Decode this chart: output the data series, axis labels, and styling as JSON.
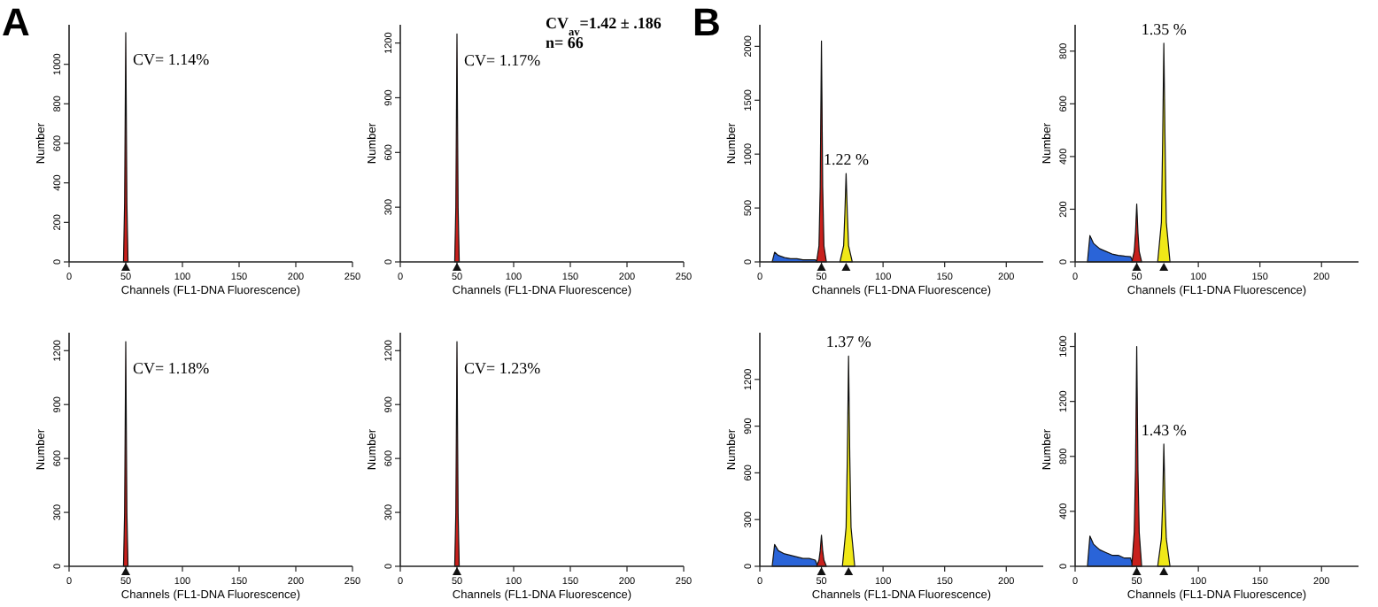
{
  "chart_data": [
    {
      "type": "area",
      "title": "A",
      "xlabel": "Channels (FL1-DNA Fluorescence)",
      "ylabel": "Number",
      "xlim": [
        0,
        250
      ],
      "xticks": [
        0,
        50,
        100,
        150,
        200,
        250
      ],
      "ylim": [
        0,
        1200
      ],
      "yticks": [
        0,
        200,
        400,
        600,
        800,
        1000
      ],
      "series": [
        {
          "color": "#c8201c",
          "x": [
            48,
            49,
            50,
            51,
            52
          ],
          "values": [
            0,
            300,
            1160,
            300,
            0
          ]
        }
      ],
      "annotations": [
        "CV= 1.14%"
      ]
    },
    {
      "type": "area",
      "xlabel": "Channels (FL1-DNA Fluorescence)",
      "ylabel": "Number",
      "xlim": [
        0,
        250
      ],
      "xticks": [
        0,
        50,
        100,
        150,
        200,
        250
      ],
      "ylim": [
        0,
        1300
      ],
      "yticks": [
        0,
        300,
        600,
        900,
        1200
      ],
      "series": [
        {
          "color": "#c8201c",
          "x": [
            48,
            49,
            50,
            51,
            52
          ],
          "values": [
            0,
            300,
            1250,
            300,
            0
          ]
        }
      ],
      "annotations": [
        "CV= 1.17%",
        "CV$_{av}$=1.42 ± .186",
        "n= 66"
      ]
    },
    {
      "type": "area",
      "title": "B",
      "xlabel": "Channels (FL1-DNA Fluorescence)",
      "ylabel": "Number",
      "xlim": [
        0,
        230
      ],
      "xticks": [
        0,
        50,
        100,
        150,
        200
      ],
      "ylim": [
        0,
        2200
      ],
      "yticks": [
        0,
        500,
        1000,
        1500,
        2000
      ],
      "series": [
        {
          "color": "#2a64d8",
          "x": [
            10,
            12,
            15,
            20,
            25,
            30,
            35,
            40,
            45,
            47
          ],
          "values": [
            0,
            90,
            60,
            40,
            30,
            30,
            20,
            20,
            20,
            0
          ]
        },
        {
          "color": "#c8201c",
          "x": [
            46,
            48,
            49,
            50,
            51,
            52,
            54
          ],
          "values": [
            0,
            150,
            700,
            2050,
            700,
            150,
            0
          ]
        },
        {
          "color": "#f0e818",
          "x": [
            65,
            68,
            69,
            70,
            71,
            72,
            75
          ],
          "values": [
            0,
            150,
            450,
            820,
            450,
            150,
            0
          ]
        }
      ],
      "annotations": [
        "1.22 %"
      ]
    },
    {
      "type": "area",
      "xlabel": "Channels (FL1-DNA Fluorescence)",
      "ylabel": "Number",
      "xlim": [
        0,
        230
      ],
      "xticks": [
        0,
        50,
        100,
        150,
        200
      ],
      "ylim": [
        0,
        900
      ],
      "yticks": [
        0,
        200,
        400,
        600,
        800
      ],
      "series": [
        {
          "color": "#2a64d8",
          "x": [
            10,
            12,
            15,
            20,
            25,
            30,
            35,
            40,
            45,
            47
          ],
          "values": [
            0,
            100,
            70,
            50,
            40,
            30,
            25,
            22,
            20,
            0
          ]
        },
        {
          "color": "#c8201c",
          "x": [
            46,
            48,
            49,
            50,
            51,
            52,
            54
          ],
          "values": [
            0,
            40,
            110,
            220,
            110,
            40,
            0
          ]
        },
        {
          "color": "#f0e818",
          "x": [
            67,
            70,
            71,
            72,
            73,
            74,
            77
          ],
          "values": [
            0,
            150,
            450,
            830,
            450,
            150,
            0
          ]
        }
      ],
      "annotations": [
        "1.35 %"
      ]
    },
    {
      "type": "area",
      "xlabel": "Channels (FL1-DNA Fluorescence)",
      "ylabel": "Number",
      "xlim": [
        0,
        250
      ],
      "xticks": [
        0,
        50,
        100,
        150,
        200,
        250
      ],
      "ylim": [
        0,
        1300
      ],
      "yticks": [
        0,
        300,
        600,
        900,
        1200
      ],
      "series": [
        {
          "color": "#c8201c",
          "x": [
            48,
            49,
            50,
            51,
            52
          ],
          "values": [
            0,
            300,
            1250,
            300,
            0
          ]
        }
      ],
      "annotations": [
        "CV= 1.18%"
      ]
    },
    {
      "type": "area",
      "xlabel": "Channels (FL1-DNA Fluorescence)",
      "ylabel": "Number",
      "xlim": [
        0,
        250
      ],
      "xticks": [
        0,
        50,
        100,
        150,
        200,
        250
      ],
      "ylim": [
        0,
        1300
      ],
      "yticks": [
        0,
        300,
        600,
        900,
        1200
      ],
      "series": [
        {
          "color": "#c8201c",
          "x": [
            48,
            49,
            50,
            51,
            52
          ],
          "values": [
            0,
            300,
            1250,
            300,
            0
          ]
        }
      ],
      "annotations": [
        "CV= 1.23%"
      ]
    },
    {
      "type": "area",
      "xlabel": "Channels (FL1-DNA Fluorescence)",
      "ylabel": "Number",
      "xlim": [
        0,
        230
      ],
      "xticks": [
        0,
        50,
        100,
        150,
        200
      ],
      "ylim": [
        0,
        1500
      ],
      "yticks": [
        0,
        300,
        600,
        900,
        1200
      ],
      "series": [
        {
          "color": "#2a64d8",
          "x": [
            10,
            12,
            15,
            20,
            25,
            30,
            35,
            40,
            45,
            47
          ],
          "values": [
            0,
            140,
            100,
            80,
            70,
            60,
            50,
            50,
            40,
            0
          ]
        },
        {
          "color": "#c8201c",
          "x": [
            46,
            48,
            49,
            50,
            51,
            52,
            54
          ],
          "values": [
            0,
            40,
            100,
            200,
            100,
            40,
            0
          ]
        },
        {
          "color": "#f0e818",
          "x": [
            67,
            70,
            71,
            72,
            73,
            74,
            77
          ],
          "values": [
            0,
            250,
            700,
            1350,
            700,
            250,
            0
          ]
        }
      ],
      "annotations": [
        "1.37 %"
      ]
    },
    {
      "type": "area",
      "xlabel": "Channels (FL1-DNA Fluorescence)",
      "ylabel": "Number",
      "xlim": [
        0,
        230
      ],
      "xticks": [
        0,
        50,
        100,
        150,
        200
      ],
      "ylim": [
        0,
        1700
      ],
      "yticks": [
        0,
        400,
        800,
        1200,
        1600
      ],
      "series": [
        {
          "color": "#2a64d8",
          "x": [
            10,
            12,
            15,
            20,
            25,
            30,
            35,
            40,
            45,
            47
          ],
          "values": [
            0,
            220,
            160,
            120,
            100,
            80,
            80,
            60,
            60,
            0
          ]
        },
        {
          "color": "#c8201c",
          "x": [
            46,
            48,
            49,
            50,
            51,
            52,
            54
          ],
          "values": [
            0,
            250,
            700,
            1600,
            700,
            250,
            0
          ]
        },
        {
          "color": "#f0e818",
          "x": [
            67,
            70,
            71,
            72,
            73,
            74,
            77
          ],
          "values": [
            0,
            200,
            450,
            890,
            450,
            200,
            0
          ]
        }
      ],
      "annotations": [
        "1.43 %"
      ]
    }
  ]
}
